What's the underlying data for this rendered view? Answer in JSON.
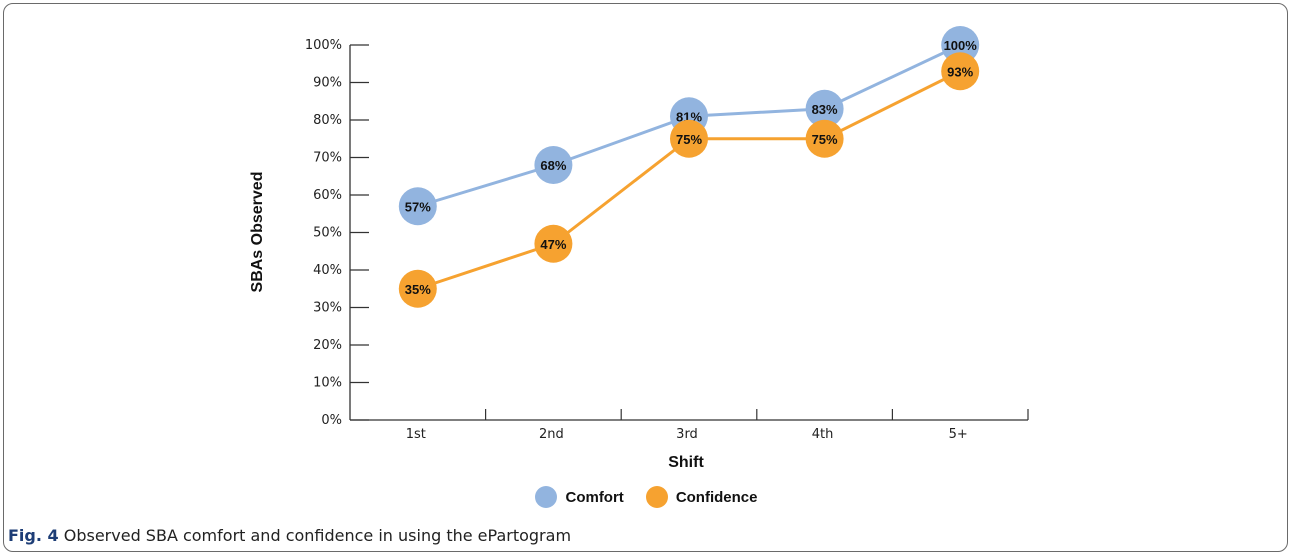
{
  "chart_data": {
    "type": "line",
    "xlabel": "Shift",
    "ylabel": "SBAs Observed",
    "categories": [
      "1st",
      "2nd",
      "3rd",
      "4th",
      "5+"
    ],
    "ylim": [
      0,
      100
    ],
    "yticks": [
      "0%",
      "10%",
      "20%",
      "30%",
      "40%",
      "50%",
      "60%",
      "70%",
      "80%",
      "90%",
      "100%"
    ],
    "series": [
      {
        "name": "Comfort",
        "color": "#92b4df",
        "values": [
          57,
          68,
          81,
          83,
          100
        ],
        "labels": [
          "57%",
          "68%",
          "81%",
          "83%",
          "100%"
        ]
      },
      {
        "name": "Confidence",
        "color": "#f6a230",
        "values": [
          35,
          47,
          75,
          75,
          93
        ],
        "labels": [
          "35%",
          "47%",
          "75%",
          "75%",
          "93%"
        ]
      }
    ],
    "legend_position": "bottom"
  },
  "caption": {
    "fig_label": "Fig. 4",
    "text": " Observed SBA comfort and confidence in using the ePartogram"
  }
}
